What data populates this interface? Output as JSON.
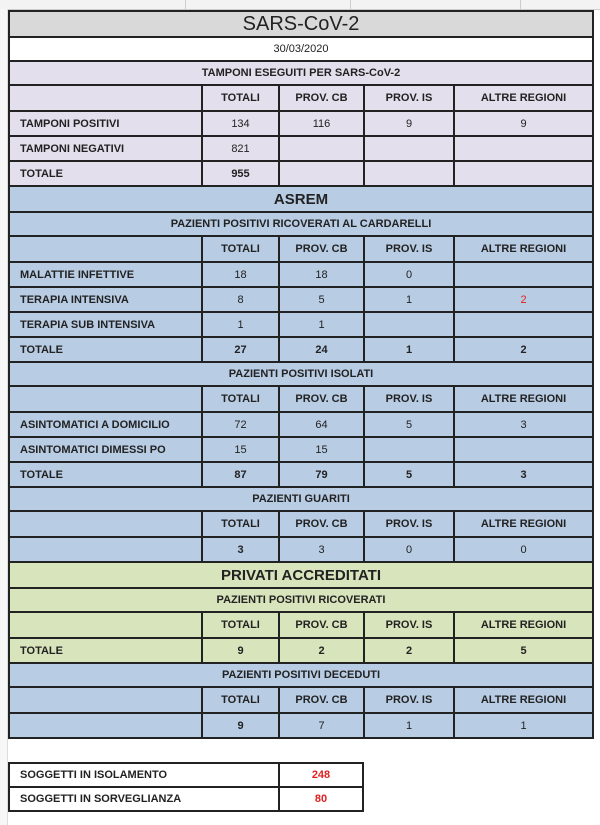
{
  "title": "SARS-CoV-2",
  "date": "30/03/2020",
  "colors": {
    "title_bg": "#d9d9d9",
    "lavender": "#e4dfec",
    "blue": "#b8cce4",
    "green": "#d8e4bc",
    "red": "#e02020"
  },
  "columns": [
    "TOTALI",
    "PROV. CB",
    "PROV. IS",
    "ALTRE REGIONI"
  ],
  "sections": [
    {
      "header": "TAMPONI ESEGUITI PER SARS-CoV-2",
      "bg": "lavender",
      "rows": [
        {
          "label": "TAMPONI POSITIVI",
          "values": [
            "134",
            "116",
            "9",
            "9"
          ],
          "bold": false
        },
        {
          "label": "TAMPONI NEGATIVI",
          "values": [
            "821",
            "",
            "",
            ""
          ],
          "bold": false
        },
        {
          "label": "TOTALE",
          "values": [
            "955",
            "",
            "",
            ""
          ],
          "bold": true
        }
      ]
    },
    {
      "group": "ASREM",
      "header": "PAZIENTI POSITIVI RICOVERATI AL CARDARELLI",
      "bg": "blue",
      "rows": [
        {
          "label": "MALATTIE INFETTIVE",
          "values": [
            "18",
            "18",
            "0",
            ""
          ],
          "bold": false
        },
        {
          "label": "TERAPIA INTENSIVA",
          "values": [
            "8",
            "5",
            "1",
            "2"
          ],
          "bold": false,
          "red": [
            3
          ]
        },
        {
          "label": "TERAPIA SUB INTENSIVA",
          "values": [
            "1",
            "1",
            "",
            ""
          ],
          "bold": false
        },
        {
          "label": "TOTALE",
          "values": [
            "27",
            "24",
            "1",
            "2"
          ],
          "bold": true
        }
      ]
    },
    {
      "header": "PAZIENTI POSITIVI ISOLATI",
      "bg": "blue",
      "rows": [
        {
          "label": "ASINTOMATICI A DOMICILIO",
          "values": [
            "72",
            "64",
            "5",
            "3"
          ],
          "bold": false
        },
        {
          "label": "ASINTOMATICI DIMESSI PO",
          "values": [
            "15",
            "15",
            "",
            ""
          ],
          "bold": false
        },
        {
          "label": "TOTALE",
          "values": [
            "87",
            "79",
            "5",
            "3"
          ],
          "bold": true
        }
      ]
    },
    {
      "header": "PAZIENTI GUARITI",
      "bg": "blue",
      "rows": [
        {
          "label": "",
          "values": [
            "3",
            "3",
            "0",
            "0"
          ],
          "bold": false,
          "firstBold": true
        }
      ]
    },
    {
      "group": "PRIVATI ACCREDITATI",
      "header": "PAZIENTI POSITIVI RICOVERATI",
      "bg": "green",
      "rows": [
        {
          "label": "TOTALE",
          "values": [
            "9",
            "2",
            "2",
            "5"
          ],
          "bold": true
        }
      ]
    },
    {
      "header": "PAZIENTI POSITIVI DECEDUTI",
      "bg": "blue",
      "rows": [
        {
          "label": "",
          "values": [
            "9",
            "7",
            "1",
            "1"
          ],
          "bold": false,
          "firstBold": true
        }
      ]
    }
  ],
  "summary": [
    {
      "label": "SOGGETTI IN ISOLAMENTO",
      "value": "248"
    },
    {
      "label": "SOGGETTI IN SORVEGLIANZA",
      "value": "80"
    }
  ]
}
